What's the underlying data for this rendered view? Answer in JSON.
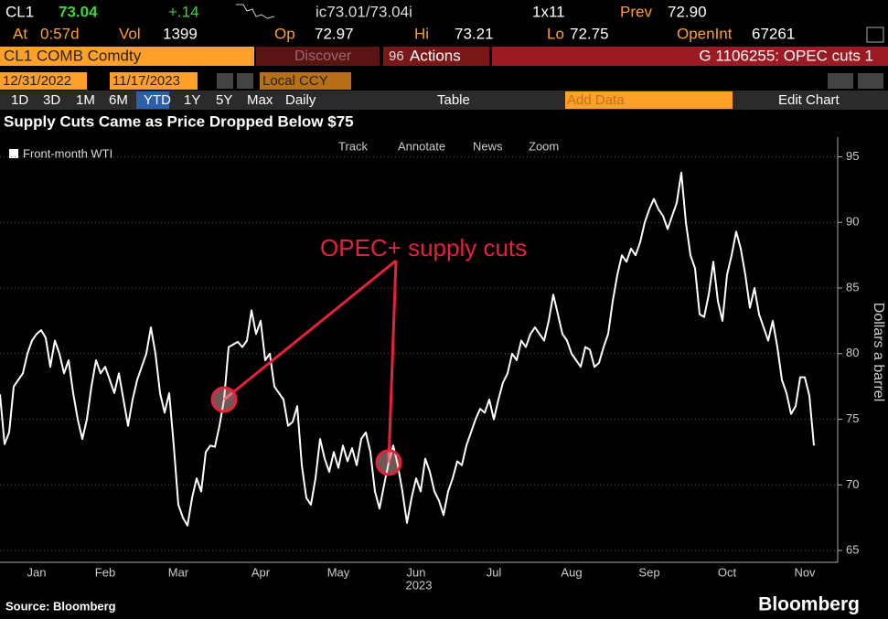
{
  "quote": {
    "ticker": "CL1",
    "last": "73.04",
    "change": "+.14",
    "bid_ask": "ic73.01/73.04i",
    "size": "1x11",
    "prev_label": "Prev",
    "prev": "72.90"
  },
  "stats": {
    "at_label": "At",
    "at": "0:57d",
    "vol_label": "Vol",
    "vol": "1399",
    "open_label": "Op",
    "open": "72.97",
    "high_label": "Hi",
    "high": "73.21",
    "low_label": "Lo",
    "low": "72.75",
    "oi_label": "OpenInt",
    "oi": "67261"
  },
  "menu": {
    "security": "CL1 COMB Comdty",
    "discover": "Discover",
    "actions_code": "96",
    "actions": "Actions",
    "page": "G 1106255: OPEC cuts 1"
  },
  "range": {
    "start": "12/31/2022",
    "end": "11/17/2023",
    "currency": "Local CCY"
  },
  "toolbar": {
    "periods": [
      "1D",
      "3D",
      "1M",
      "6M",
      "YTD",
      "1Y",
      "5Y",
      "Max"
    ],
    "frequency": "Daily",
    "table": "Table",
    "add_data": "Add Data",
    "edit_chart": "Edit Chart"
  },
  "chart_tools": [
    "Track",
    "Annotate",
    "News",
    "Zoom"
  ],
  "chart_data": {
    "type": "line",
    "title": "Supply Cuts Came as Price Dropped Below $75",
    "x_label": "2023",
    "y_label": "Dollars a barrel",
    "annotation": "OPEC+ supply cuts",
    "source": "Source: Bloomberg",
    "brand": "Bloomberg",
    "ylim": [
      64.1,
      96.5
    ],
    "yticks": [
      65,
      70,
      75,
      80,
      85,
      90,
      95
    ],
    "grid": true,
    "legend": "top-left",
    "categories": [
      null,
      null,
      null,
      null,
      null,
      null,
      null,
      null,
      "Jan",
      null,
      null,
      null,
      null,
      null,
      null,
      null,
      null,
      null,
      null,
      null,
      null,
      null,
      null,
      "Feb",
      null,
      null,
      null,
      null,
      null,
      null,
      null,
      null,
      null,
      null,
      null,
      null,
      null,
      null,
      null,
      "Mar",
      null,
      null,
      null,
      null,
      null,
      null,
      null,
      null,
      null,
      null,
      null,
      null,
      null,
      null,
      null,
      null,
      null,
      "Apr",
      null,
      null,
      null,
      null,
      null,
      null,
      null,
      null,
      null,
      null,
      null,
      null,
      null,
      null,
      null,
      null,
      "May",
      null,
      null,
      null,
      null,
      null,
      null,
      null,
      null,
      null,
      null,
      null,
      null,
      null,
      null,
      null,
      null,
      "Jun",
      null,
      null,
      null,
      null,
      null,
      null,
      null,
      null,
      null,
      null,
      null,
      null,
      null,
      null,
      null,
      null,
      "Jul",
      null,
      null,
      null,
      null,
      null,
      null,
      null,
      null,
      null,
      null,
      null,
      null,
      null,
      null,
      null,
      null,
      "Aug",
      null,
      null,
      null,
      null,
      null,
      null,
      null,
      null,
      null,
      null,
      null,
      null,
      null,
      null,
      null,
      null,
      "Sep",
      null,
      null,
      null,
      null,
      null,
      null,
      null,
      null,
      null,
      null,
      null,
      null,
      null,
      null,
      null,
      null,
      "Oct",
      null,
      null,
      null,
      null,
      null,
      null,
      null,
      null,
      null,
      null,
      null,
      null,
      null,
      null,
      null,
      null,
      "Nov",
      null,
      null
    ],
    "series": [
      {
        "name": "Front-month WTI",
        "color": "#ffffff",
        "values": [
          76.9,
          73.1,
          74.0,
          77.5,
          78.0,
          78.5,
          80.0,
          81.0,
          81.5,
          81.8,
          81.2,
          79.0,
          81.0,
          80.0,
          78.5,
          79.5,
          77.0,
          75.0,
          73.5,
          75.0,
          77.5,
          79.5,
          78.5,
          79.0,
          78.0,
          77.0,
          78.5,
          76.5,
          74.5,
          76.5,
          78.0,
          79.0,
          80.0,
          82.0,
          80.0,
          77.0,
          75.5,
          77.0,
          73.0,
          68.5,
          67.5,
          66.9,
          69.0,
          70.5,
          69.5,
          72.5,
          73.0,
          72.9,
          74.5,
          76.5,
          80.5,
          80.7,
          80.9,
          80.5,
          81.0,
          83.3,
          81.5,
          82.5,
          79.5,
          80.0,
          77.5,
          77.0,
          76.5,
          74.5,
          74.8,
          76.0,
          71.5,
          69.0,
          68.5,
          70.5,
          73.5,
          72.0,
          71.0,
          72.5,
          71.3,
          73.0,
          71.8,
          72.8,
          71.5,
          73.5,
          74.0,
          72.5,
          69.5,
          68.2,
          70.0,
          71.7,
          73.0,
          71.5,
          69.5,
          67.1,
          69.0,
          70.5,
          69.5,
          72.0,
          71.0,
          69.5,
          68.8,
          67.7,
          69.5,
          70.5,
          71.8,
          71.5,
          73.0,
          74.0,
          75.0,
          75.8,
          75.5,
          76.5,
          75.0,
          76.5,
          77.8,
          78.5,
          80.0,
          79.5,
          81.0,
          80.5,
          81.5,
          82.0,
          81.5,
          81.0,
          82.5,
          84.5,
          83.0,
          81.5,
          81.0,
          80.0,
          79.5,
          79.0,
          80.5,
          80.3,
          79.0,
          79.3,
          80.5,
          81.5,
          84.0,
          86.0,
          87.5,
          87.0,
          88.0,
          87.5,
          88.5,
          90.0,
          91.0,
          91.8,
          91.0,
          90.5,
          89.5,
          90.5,
          91.5,
          93.8,
          90.0,
          87.5,
          86.5,
          83.0,
          82.8,
          84.5,
          87.0,
          84.0,
          82.5,
          86.0,
          87.5,
          89.3,
          88.0,
          86.0,
          83.5,
          85.0,
          83.0,
          82.0,
          81.0,
          82.5,
          80.5,
          78.0,
          77.0,
          75.4,
          76.0,
          78.2,
          78.2,
          76.8,
          73.0
        ]
      }
    ]
  }
}
